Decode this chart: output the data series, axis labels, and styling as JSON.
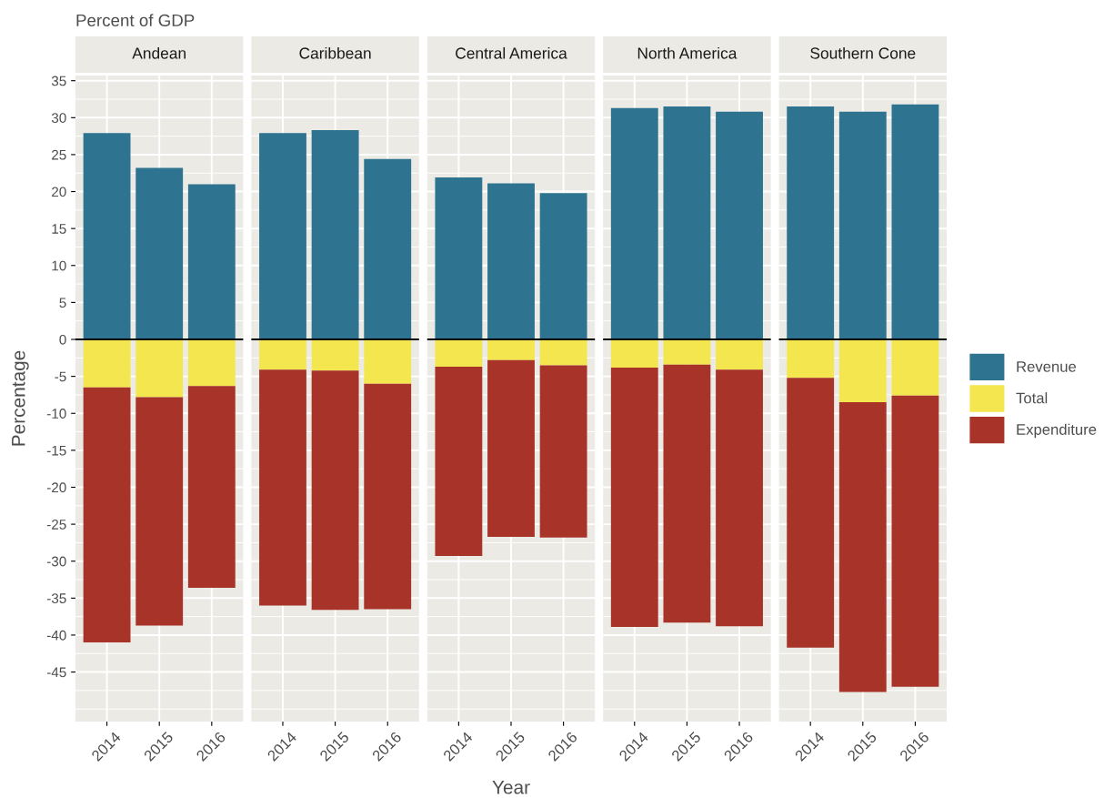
{
  "chart_data": [
    {
      "type": "bar",
      "title": "Andean",
      "subtitle": "Percent of GDP",
      "ylabel": "Percentage",
      "categories": [
        "2014",
        "2015",
        "2016"
      ],
      "stacked": true,
      "ylim": [
        -51.7,
        35.7
      ],
      "yticks": [
        35,
        30,
        25,
        20,
        15,
        10,
        5,
        0,
        -5,
        -10,
        -15,
        -20,
        -25,
        -30,
        -35,
        -40,
        -45
      ],
      "grid": true,
      "ref_lines": [
        {
          "axis": "y",
          "value": 0,
          "color": "#000000"
        }
      ],
      "series": [
        {
          "color": "#2e7390",
          "values": [
            27.9,
            23.2,
            21.0
          ]
        },
        {
          "color": "#f4e64f",
          "values": [
            -6.5,
            -7.8,
            -6.3
          ]
        },
        {
          "color": "#a83429",
          "values": [
            -34.5,
            -30.9,
            -27.3
          ]
        }
      ]
    },
    {
      "type": "bar",
      "title": "Caribbean",
      "categories": [
        "2014",
        "2015",
        "2016"
      ],
      "stacked": true,
      "ylim": [
        -51.7,
        35.7
      ],
      "yticks": [
        35,
        30,
        25,
        20,
        15,
        10,
        5,
        0,
        -5,
        -10,
        -15,
        -20,
        -25,
        -30,
        -35,
        -40,
        -45
      ],
      "tick_labels": "x",
      "grid": true,
      "ref_lines": [
        {
          "axis": "y",
          "value": 0,
          "color": "#000000"
        }
      ],
      "series": [
        {
          "color": "#2e7390",
          "values": [
            27.9,
            28.3,
            24.4
          ]
        },
        {
          "color": "#f4e64f",
          "values": [
            -4.1,
            -4.2,
            -6.0
          ]
        },
        {
          "color": "#a83429",
          "values": [
            -31.9,
            -32.4,
            -30.5
          ]
        }
      ]
    },
    {
      "type": "bar",
      "title": "Central America",
      "xlabel": "Year",
      "categories": [
        "2014",
        "2015",
        "2016"
      ],
      "stacked": true,
      "ylim": [
        -51.7,
        35.7
      ],
      "yticks": [
        35,
        30,
        25,
        20,
        15,
        10,
        5,
        0,
        -5,
        -10,
        -15,
        -20,
        -25,
        -30,
        -35,
        -40,
        -45
      ],
      "tick_labels": "x",
      "grid": true,
      "ref_lines": [
        {
          "axis": "y",
          "value": 0,
          "color": "#000000"
        }
      ],
      "series": [
        {
          "color": "#2e7390",
          "values": [
            21.9,
            21.1,
            19.8
          ]
        },
        {
          "color": "#f4e64f",
          "values": [
            -3.7,
            -2.8,
            -3.5
          ]
        },
        {
          "color": "#a83429",
          "values": [
            -25.6,
            -23.9,
            -23.3
          ]
        }
      ]
    },
    {
      "type": "bar",
      "title": "North America",
      "categories": [
        "2014",
        "2015",
        "2016"
      ],
      "stacked": true,
      "ylim": [
        -51.7,
        35.7
      ],
      "yticks": [
        35,
        30,
        25,
        20,
        15,
        10,
        5,
        0,
        -5,
        -10,
        -15,
        -20,
        -25,
        -30,
        -35,
        -40,
        -45
      ],
      "tick_labels": "x",
      "grid": true,
      "ref_lines": [
        {
          "axis": "y",
          "value": 0,
          "color": "#000000"
        }
      ],
      "series": [
        {
          "color": "#2e7390",
          "values": [
            31.3,
            31.5,
            30.8
          ]
        },
        {
          "color": "#f4e64f",
          "values": [
            -3.8,
            -3.4,
            -4.1
          ]
        },
        {
          "color": "#a83429",
          "values": [
            -35.1,
            -34.9,
            -34.7
          ]
        }
      ]
    },
    {
      "type": "bar",
      "title": "Southern Cone",
      "categories": [
        "2014",
        "2015",
        "2016"
      ],
      "stacked": true,
      "ylim": [
        -51.7,
        35.7
      ],
      "yticks": [
        35,
        30,
        25,
        20,
        15,
        10,
        5,
        0,
        -5,
        -10,
        -15,
        -20,
        -25,
        -30,
        -35,
        -40,
        -45
      ],
      "tick_labels": "x",
      "grid": true,
      "legend": "right",
      "ref_lines": [
        {
          "axis": "y",
          "value": 0,
          "color": "#000000"
        }
      ],
      "series": [
        {
          "name": "Revenue",
          "color": "#2e7390",
          "values": [
            31.5,
            30.8,
            31.8
          ]
        },
        {
          "name": "Total",
          "color": "#f4e64f",
          "values": [
            -5.2,
            -8.5,
            -7.6
          ]
        },
        {
          "name": "Expenditure",
          "color": "#a83429",
          "values": [
            -36.5,
            -39.2,
            -39.4
          ]
        }
      ]
    }
  ]
}
